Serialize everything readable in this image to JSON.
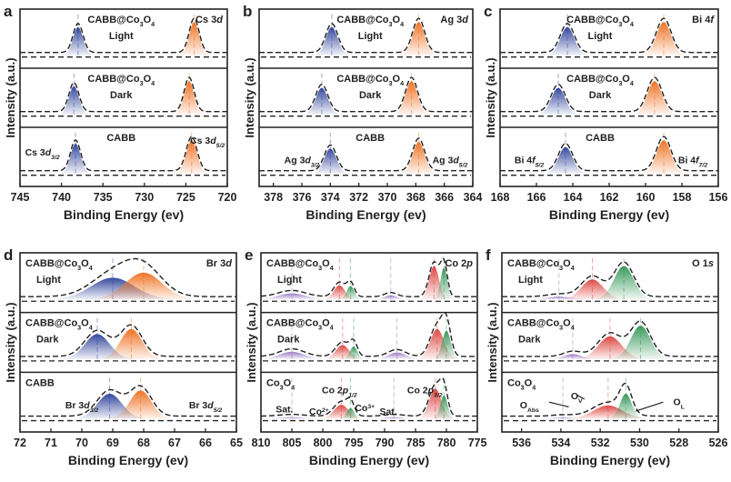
{
  "chart_data": [
    {
      "id": "a",
      "type": "area",
      "letter": "a",
      "xlabel": "Binding Energy (ev)",
      "ylabel": "Intensity (a.u.)",
      "xlim": [
        745,
        720
      ],
      "ticks": [
        "745",
        "740",
        "735",
        "730",
        "725",
        "720"
      ],
      "core": [
        [
          "Cs 3",
          ""
        ],
        [
          "d",
          "i"
        ]
      ],
      "samples": [
        {
          "line1": [
            [
              "CABB@Co",
              ""
            ],
            [
              "3",
              "s"
            ],
            [
              "O",
              ""
            ],
            [
              "4",
              "s"
            ]
          ],
          "line2": "Light"
        },
        {
          "line1": [
            [
              "CABB@Co",
              ""
            ],
            [
              "3",
              "s"
            ],
            [
              "O",
              ""
            ],
            [
              "4",
              "s"
            ]
          ],
          "line2": "Dark"
        },
        {
          "line1": [
            [
              "CABB",
              ""
            ]
          ],
          "line2": ""
        }
      ],
      "peaks": [
        [
          {
            "x": 738.0,
            "w": 0.6,
            "h": 0.85,
            "c": "blue"
          },
          {
            "x": 724.0,
            "w": 0.6,
            "h": 1.0,
            "c": "orange"
          }
        ],
        [
          {
            "x": 738.5,
            "w": 0.6,
            "h": 0.85,
            "c": "blue"
          },
          {
            "x": 724.6,
            "w": 0.6,
            "h": 1.0,
            "c": "orange"
          }
        ],
        [
          {
            "x": 738.3,
            "w": 0.6,
            "h": 0.9,
            "c": "blue"
          },
          {
            "x": 724.3,
            "w": 0.65,
            "h": 1.0,
            "c": "orange"
          }
        ]
      ],
      "labels": [
        {
          "seg": [
            [
              "Cs 3",
              ""
            ],
            [
              "d",
              "i"
            ],
            [
              "3/2",
              "si"
            ]
          ]
        },
        {
          "seg": [
            [
              "Cs 3",
              ""
            ],
            [
              "d",
              "i"
            ],
            [
              "5/2",
              "si"
            ]
          ]
        }
      ]
    },
    {
      "id": "b",
      "type": "area",
      "letter": "b",
      "xlabel": "Binding Energy (ev)",
      "ylabel": "Intensity (a.u.)",
      "xlim": [
        379,
        364
      ],
      "ticks": [
        "378",
        "376",
        "374",
        "372",
        "370",
        "368",
        "366",
        "364"
      ],
      "core": [
        [
          "Ag 3",
          ""
        ],
        [
          "d",
          "i"
        ]
      ],
      "samples": [
        {
          "line1": [
            [
              "CABB@Co",
              ""
            ],
            [
              "3",
              "s"
            ],
            [
              "O",
              ""
            ],
            [
              "4",
              "s"
            ]
          ],
          "line2": "Light"
        },
        {
          "line1": [
            [
              "CABB@Co",
              ""
            ],
            [
              "3",
              "s"
            ],
            [
              "O",
              ""
            ],
            [
              "4",
              "s"
            ]
          ],
          "line2": "Dark"
        },
        {
          "line1": [
            [
              "CABB",
              ""
            ]
          ],
          "line2": ""
        }
      ],
      "peaks": [
        [
          {
            "x": 373.9,
            "w": 0.42,
            "h": 0.85,
            "c": "blue"
          },
          {
            "x": 367.8,
            "w": 0.42,
            "h": 1.0,
            "c": "orange"
          }
        ],
        [
          {
            "x": 374.6,
            "w": 0.42,
            "h": 0.8,
            "c": "blue"
          },
          {
            "x": 368.3,
            "w": 0.42,
            "h": 1.0,
            "c": "orange"
          }
        ],
        [
          {
            "x": 374.0,
            "w": 0.42,
            "h": 0.75,
            "c": "blue"
          },
          {
            "x": 367.8,
            "w": 0.42,
            "h": 0.95,
            "c": "orange"
          }
        ]
      ],
      "labels": [
        {
          "seg": [
            [
              "Ag 3",
              ""
            ],
            [
              "d",
              "i"
            ],
            [
              "3/2",
              "si"
            ]
          ]
        },
        {
          "seg": [
            [
              "Ag 3",
              ""
            ],
            [
              "d",
              "i"
            ],
            [
              "5/2",
              "si"
            ]
          ]
        }
      ]
    },
    {
      "id": "c",
      "type": "area",
      "letter": "c",
      "xlabel": "Binding Energy (ev)",
      "ylabel": "Intensity (a.u.)",
      "xlim": [
        168,
        156
      ],
      "ticks": [
        "168",
        "166",
        "164",
        "162",
        "160",
        "158",
        "156"
      ],
      "core": [
        [
          "Bi 4",
          ""
        ],
        [
          "f",
          "i"
        ]
      ],
      "samples": [
        {
          "line1": [
            [
              "CABB@Co",
              ""
            ],
            [
              "3",
              "s"
            ],
            [
              "O",
              ""
            ],
            [
              "4",
              "s"
            ]
          ],
          "line2": "Light"
        },
        {
          "line1": [
            [
              "CABB@Co",
              ""
            ],
            [
              "3",
              "s"
            ],
            [
              "O",
              ""
            ],
            [
              "4",
              "s"
            ]
          ],
          "line2": "Dark"
        },
        {
          "line1": [
            [
              "CABB",
              ""
            ]
          ],
          "line2": ""
        }
      ],
      "peaks": [
        [
          {
            "x": 164.3,
            "w": 0.38,
            "h": 0.85,
            "c": "blue"
          },
          {
            "x": 159.0,
            "w": 0.4,
            "h": 1.0,
            "c": "orange"
          }
        ],
        [
          {
            "x": 164.8,
            "w": 0.38,
            "h": 0.8,
            "c": "blue"
          },
          {
            "x": 159.5,
            "w": 0.4,
            "h": 1.0,
            "c": "orange"
          }
        ],
        [
          {
            "x": 164.4,
            "w": 0.38,
            "h": 0.8,
            "c": "blue"
          },
          {
            "x": 159.0,
            "w": 0.4,
            "h": 1.0,
            "c": "orange"
          }
        ]
      ],
      "labels": [
        {
          "seg": [
            [
              "Bi 4",
              ""
            ],
            [
              "f",
              "i"
            ],
            [
              "5/2",
              "si"
            ]
          ]
        },
        {
          "seg": [
            [
              "Bi 4",
              ""
            ],
            [
              "f",
              "i"
            ],
            [
              "7/2",
              "si"
            ]
          ]
        }
      ]
    },
    {
      "id": "d",
      "type": "area",
      "letter": "d",
      "xlabel": "Binding Energy (ev)",
      "ylabel": "Intensity (a.u.)",
      "xlim": [
        72,
        65
      ],
      "ticks": [
        "72",
        "71",
        "70",
        "69",
        "68",
        "67",
        "66",
        "65"
      ],
      "core": [
        [
          "Br 3",
          ""
        ],
        [
          "d",
          "i"
        ]
      ],
      "samples": [
        {
          "line1": [
            [
              "CABB@Co",
              ""
            ],
            [
              "3",
              "s"
            ],
            [
              "O",
              ""
            ],
            [
              "4",
              "s"
            ]
          ],
          "line2": "Light"
        },
        {
          "line1": [
            [
              "CABB@Co",
              ""
            ],
            [
              "3",
              "s"
            ],
            [
              "O",
              ""
            ],
            [
              "4",
              "s"
            ]
          ],
          "line2": "Dark"
        },
        {
          "line1": [
            [
              "CABB",
              ""
            ]
          ],
          "line2": ""
        }
      ],
      "peaks": [
        [
          {
            "x": 69.0,
            "w": 0.7,
            "h": 0.65,
            "c": "blue"
          },
          {
            "x": 68.0,
            "w": 0.6,
            "h": 0.8,
            "c": "orange"
          }
        ],
        [
          {
            "x": 69.5,
            "w": 0.4,
            "h": 0.75,
            "c": "blue"
          },
          {
            "x": 68.4,
            "w": 0.35,
            "h": 0.9,
            "c": "orange"
          }
        ],
        [
          {
            "x": 69.1,
            "w": 0.4,
            "h": 0.75,
            "c": "blue"
          },
          {
            "x": 68.1,
            "w": 0.35,
            "h": 0.85,
            "c": "orange"
          }
        ]
      ],
      "labels": [
        {
          "seg": [
            [
              "Br 3",
              ""
            ],
            [
              "d",
              "i"
            ],
            [
              "3/2",
              "si"
            ]
          ]
        },
        {
          "seg": [
            [
              "Br 3",
              ""
            ],
            [
              "d",
              "i"
            ],
            [
              "5/2",
              "si"
            ]
          ]
        }
      ]
    },
    {
      "id": "e",
      "type": "area",
      "letter": "e",
      "xlabel": "Binding Energy (ev)",
      "ylabel": "Intensity (a.u.)",
      "xlim": [
        810,
        775
      ],
      "ticks": [
        "810",
        "805",
        "800",
        "795",
        "790",
        "785",
        "780",
        "775"
      ],
      "core": [
        [
          "Co 2",
          ""
        ],
        [
          "p",
          "i"
        ]
      ],
      "samples": [
        {
          "line1": [
            [
              "CABB@Co",
              ""
            ],
            [
              "3",
              "s"
            ],
            [
              "O",
              ""
            ],
            [
              "4",
              "s"
            ]
          ],
          "line2": "Light"
        },
        {
          "line1": [
            [
              "CABB@Co",
              ""
            ],
            [
              "3",
              "s"
            ],
            [
              "O",
              ""
            ],
            [
              "4",
              "s"
            ]
          ],
          "line2": "Dark"
        },
        {
          "line1": [
            [
              "Co",
              ""
            ],
            [
              "3",
              "s"
            ],
            [
              "O",
              ""
            ],
            [
              "4",
              "s"
            ]
          ],
          "line2": ""
        }
      ],
      "peaks": [
        [
          {
            "x": 805,
            "w": 2.2,
            "h": 0.18,
            "c": "purple"
          },
          {
            "x": 797.3,
            "w": 0.9,
            "h": 0.42,
            "c": "red"
          },
          {
            "x": 795.5,
            "w": 0.6,
            "h": 0.4,
            "c": "green"
          },
          {
            "x": 789,
            "w": 1.0,
            "h": 0.12,
            "c": "purple"
          },
          {
            "x": 782.0,
            "w": 0.8,
            "h": 1.0,
            "c": "red"
          },
          {
            "x": 780.4,
            "w": 0.55,
            "h": 0.95,
            "c": "green"
          }
        ],
        [
          {
            "x": 805,
            "w": 2.0,
            "h": 0.22,
            "c": "purple"
          },
          {
            "x": 796.8,
            "w": 1.1,
            "h": 0.42,
            "c": "red"
          },
          {
            "x": 795.0,
            "w": 0.6,
            "h": 0.38,
            "c": "green"
          },
          {
            "x": 788,
            "w": 1.4,
            "h": 0.2,
            "c": "purple"
          },
          {
            "x": 781.5,
            "w": 1.1,
            "h": 0.9,
            "c": "red"
          },
          {
            "x": 780.0,
            "w": 0.7,
            "h": 0.85,
            "c": "green"
          }
        ],
        [
          {
            "x": 805,
            "w": 2.0,
            "h": 0.05,
            "c": "purple"
          },
          {
            "x": 797.0,
            "w": 1.2,
            "h": 0.42,
            "c": "red"
          },
          {
            "x": 795.5,
            "w": 0.6,
            "h": 0.32,
            "c": "green"
          },
          {
            "x": 788.5,
            "w": 1.5,
            "h": 0.05,
            "c": "purple"
          },
          {
            "x": 781.8,
            "w": 1.0,
            "h": 0.9,
            "c": "red"
          },
          {
            "x": 780.4,
            "w": 0.6,
            "h": 0.7,
            "c": "green"
          }
        ]
      ],
      "labels": [
        {
          "seg": [
            [
              "Co 2",
              ""
            ],
            [
              "p",
              "i"
            ],
            [
              "1/2",
              "si"
            ]
          ]
        },
        {
          "seg": [
            [
              "Co 2",
              ""
            ],
            [
              "p",
              "i"
            ],
            [
              "3/2",
              "si"
            ]
          ]
        },
        {
          "seg": [
            [
              "Sat.",
              ""
            ]
          ]
        },
        {
          "seg": [
            [
              "Sat.",
              ""
            ]
          ]
        },
        {
          "seg": [
            [
              "Co",
              ""
            ],
            [
              "2+",
              "p"
            ]
          ]
        },
        {
          "seg": [
            [
              "Co",
              ""
            ],
            [
              "3+",
              "p"
            ]
          ]
        }
      ]
    },
    {
      "id": "f",
      "type": "area",
      "letter": "f",
      "xlabel": "Binding Energy (ev)",
      "ylabel": "Intensity (a.u.)",
      "xlim": [
        537,
        526
      ],
      "ticks": [
        "536",
        "534",
        "532",
        "530",
        "528",
        "526"
      ],
      "core": [
        [
          "O 1",
          ""
        ],
        [
          "s",
          "i"
        ]
      ],
      "samples": [
        {
          "line1": [
            [
              "CABB@Co",
              ""
            ],
            [
              "3",
              "s"
            ],
            [
              "O",
              ""
            ],
            [
              "4",
              "s"
            ]
          ],
          "line2": "Light"
        },
        {
          "line1": [
            [
              "CABB@Co",
              ""
            ],
            [
              "3",
              "s"
            ],
            [
              "O",
              ""
            ],
            [
              "4",
              "s"
            ]
          ],
          "line2": "Dark"
        },
        {
          "line1": [
            [
              "Co",
              ""
            ],
            [
              "3",
              "s"
            ],
            [
              "O",
              ""
            ],
            [
              "4",
              "s"
            ]
          ],
          "line2": ""
        }
      ],
      "peaks": [
        [
          {
            "x": 534.1,
            "w": 0.6,
            "h": 0.08,
            "c": "purple"
          },
          {
            "x": 532.4,
            "w": 0.55,
            "h": 0.6,
            "c": "red"
          },
          {
            "x": 530.8,
            "w": 0.5,
            "h": 1.0,
            "c": "green"
          }
        ],
        [
          {
            "x": 533.4,
            "w": 0.45,
            "h": 0.15,
            "c": "purple"
          },
          {
            "x": 531.5,
            "w": 0.6,
            "h": 0.68,
            "c": "red"
          },
          {
            "x": 529.95,
            "w": 0.5,
            "h": 1.0,
            "c": "green"
          }
        ],
        [
          {
            "x": 533.9,
            "w": 0.5,
            "h": 0.04,
            "c": "purple"
          },
          {
            "x": 531.6,
            "w": 0.75,
            "h": 0.4,
            "c": "red"
          },
          {
            "x": 530.7,
            "w": 0.3,
            "h": 0.75,
            "c": "green"
          }
        ]
      ],
      "labels": [
        {
          "seg": [
            [
              "O",
              ""
            ],
            [
              "Abs",
              "s"
            ]
          ]
        },
        {
          "seg": [
            [
              "O",
              ""
            ],
            [
              "V",
              "s"
            ]
          ]
        },
        {
          "seg": [
            [
              "O",
              ""
            ],
            [
              "L",
              "s"
            ]
          ]
        }
      ]
    }
  ],
  "colors": {
    "blue": "#36499e",
    "orange": "#ef7426",
    "red": "#dd4a45",
    "green": "#3a9a5c",
    "purple": "#9a7cc6",
    "axis": "#222222"
  }
}
